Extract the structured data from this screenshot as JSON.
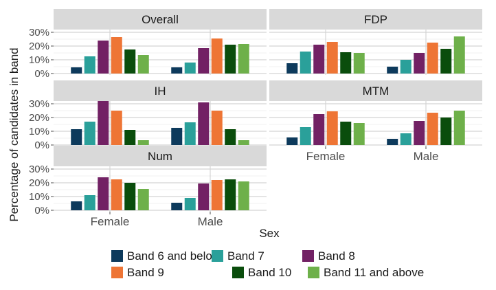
{
  "chart_data": {
    "type": "bar",
    "layout": "faceted small multiples, 2 columns",
    "xlabel": "Sex",
    "ylabel": "Percentage of candidates in band",
    "ylim": [
      0,
      32
    ],
    "yticks": [
      "0%",
      "10%",
      "20%",
      "30%"
    ],
    "ytick_values": [
      0,
      10,
      20,
      30
    ],
    "categories": [
      "Female",
      "Male"
    ],
    "legend_position": "bottom",
    "series": [
      {
        "name": "Band 6 and below",
        "color": "#0d3a5c"
      },
      {
        "name": "Band 7",
        "color": "#2aa09a"
      },
      {
        "name": "Band 8",
        "color": "#722164"
      },
      {
        "name": "Band 9",
        "color": "#ee7535"
      },
      {
        "name": "Band 10",
        "color": "#0a4d0c"
      },
      {
        "name": "Band 11 and above",
        "color": "#6eb04a"
      }
    ],
    "facets": [
      {
        "name": "Overall",
        "values": [
          [
            4.5,
            12.5,
            24,
            26.5,
            17.5,
            13.5
          ],
          [
            4.5,
            8,
            18.5,
            25.5,
            21,
            21.5
          ]
        ]
      },
      {
        "name": "FDP",
        "values": [
          [
            7.5,
            16,
            21,
            23,
            15.5,
            15
          ],
          [
            5,
            10,
            15,
            22.5,
            18,
            27
          ]
        ]
      },
      {
        "name": "IH",
        "values": [
          [
            11.5,
            17,
            32,
            25,
            11,
            3.5
          ],
          [
            12.5,
            16.5,
            31,
            25,
            11.5,
            3.5
          ]
        ]
      },
      {
        "name": "MTM",
        "values": [
          [
            5.5,
            13,
            22.5,
            24.5,
            17,
            16
          ],
          [
            4.5,
            8.5,
            17.5,
            23.5,
            20,
            25
          ]
        ]
      },
      {
        "name": "Num",
        "values": [
          [
            6.5,
            11,
            24,
            22.5,
            20,
            15.5
          ],
          [
            5.5,
            9,
            19.5,
            22,
            22.5,
            21
          ]
        ]
      }
    ]
  }
}
